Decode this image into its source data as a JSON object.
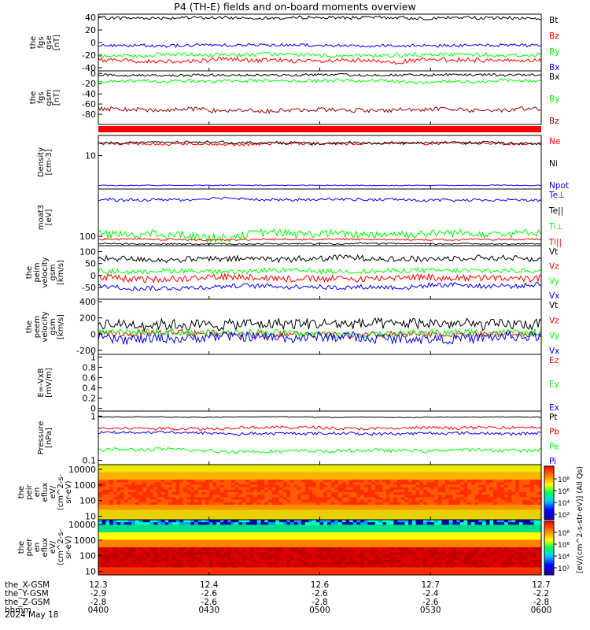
{
  "title": "P4 (TH-E) fields and on-board moments overview",
  "date_label": "2024 May 18",
  "colors": {
    "black": "#000000",
    "red": "#ff0000",
    "green": "#00ff00",
    "blue": "#0000ff",
    "darkred": "#990000"
  },
  "chart_data": [
    {
      "type": "line",
      "id": "fgs-gse",
      "ylabel": [
        "the",
        "fgs",
        "gse",
        "[nT]"
      ],
      "ylim": [
        -45,
        45
      ],
      "yticks": [
        40,
        20,
        0,
        -20,
        -40
      ],
      "series": [
        {
          "name": "Bt",
          "color": "#000000",
          "base": 39,
          "amp": 2,
          "step": 2.5
        },
        {
          "name": "Bz",
          "color": "#ff0000",
          "base": -28,
          "amp": 4,
          "step": 3.5
        },
        {
          "name": "By",
          "color": "#00ff00",
          "base": -20,
          "amp": 4,
          "step": 3
        },
        {
          "name": "Bx",
          "color": "#0000ff",
          "base": -5,
          "amp": 2,
          "step": 2.5
        }
      ]
    },
    {
      "type": "line",
      "id": "fgs-gsm",
      "ylabel": [
        "the",
        "fgs",
        "gsm",
        "[nT]"
      ],
      "ylim": [
        -100,
        5
      ],
      "yticks": [
        0,
        -20,
        -40,
        -60,
        -80
      ],
      "series": [
        {
          "name": "Bx",
          "color": "#000000",
          "base": -3,
          "amp": 2,
          "step": 2.5
        },
        {
          "name": "By",
          "color": "#00ff00",
          "base": -15,
          "amp": 4,
          "step": 3
        },
        {
          "name": "Bz",
          "color": "#990000",
          "base": -70,
          "amp": 6,
          "step": 4
        }
      ]
    },
    {
      "type": "line",
      "id": "density",
      "ylabel": [
        "Density",
        "[cm-3]"
      ],
      "log": true,
      "ylim": [
        2.7,
        22
      ],
      "yticks": [
        10
      ],
      "series": [
        {
          "name": "Ne",
          "color": "#ff0000",
          "base": 16,
          "amp": 1.2,
          "step": 0.8
        },
        {
          "name": "Ni",
          "color": "#000000",
          "base": 16.5,
          "amp": 1.2,
          "step": 0.8
        },
        {
          "name": "Npot",
          "color": "#0000ff",
          "base": 3.1,
          "amp": 0.05,
          "step": 0.05
        }
      ]
    },
    {
      "type": "line",
      "id": "temperature",
      "ylabel": [
        "moat3",
        "[eV]"
      ],
      "log": true,
      "ylim": [
        68,
        700
      ],
      "yticks": [
        100
      ],
      "series": [
        {
          "name": "Te⊥",
          "color": "#0000ff",
          "base": 450,
          "amp": 40,
          "step": 25
        },
        {
          "name": "Te||",
          "color": "#000000",
          "base": 74,
          "amp": 3,
          "step": 2
        },
        {
          "name": "Ti⊥",
          "color": "#00ff00",
          "base": 115,
          "amp": 20,
          "step": 18
        },
        {
          "name": "Ti||",
          "color": "#ff0000",
          "base": 88,
          "amp": 4,
          "step": 3
        }
      ]
    },
    {
      "type": "line",
      "id": "peim-velocity",
      "ylabel": [
        "the",
        "peim",
        "velocity",
        "gsm",
        "[km/s]"
      ],
      "ylim": [
        -100,
        125
      ],
      "yticks": [
        100,
        50,
        0,
        -50
      ],
      "series": [
        {
          "name": "Vt",
          "color": "#000000",
          "base": 70,
          "amp": 10,
          "step": 12
        },
        {
          "name": "Vz",
          "color": "#ff0000",
          "base": -10,
          "amp": 15,
          "step": 14
        },
        {
          "name": "Vy",
          "color": "#00ff00",
          "base": 20,
          "amp": 10,
          "step": 10
        },
        {
          "name": "Vx",
          "color": "#0000ff",
          "base": -45,
          "amp": 12,
          "step": 10
        }
      ]
    },
    {
      "type": "line",
      "id": "peem-velocity",
      "ylabel": [
        "the",
        "peem",
        "velocity",
        "gsm",
        "[km/s]"
      ],
      "ylim": [
        -250,
        430
      ],
      "yticks": [
        400,
        200,
        0,
        -200
      ],
      "series": [
        {
          "name": "Vt",
          "color": "#000000",
          "base": 120,
          "amp": 40,
          "step": 70
        },
        {
          "name": "Vz",
          "color": "#ff0000",
          "base": 0,
          "amp": 30,
          "step": 40
        },
        {
          "name": "Vy",
          "color": "#00ff00",
          "base": 20,
          "amp": 30,
          "step": 40
        },
        {
          "name": "Vx",
          "color": "#0000ff",
          "base": -40,
          "amp": 40,
          "step": 60
        }
      ]
    },
    {
      "type": "line",
      "id": "efield",
      "ylabel": [
        "E=-VxB",
        "[mV/m]"
      ],
      "ylim": [
        -0.05,
        1.05
      ],
      "yticks": [
        1.0,
        0.8,
        0.6,
        0.4,
        0.2,
        0.0
      ],
      "series": [
        {
          "name": "Ez",
          "color": "#ff0000",
          "empty": true
        },
        {
          "name": "Ey",
          "color": "#00ff00",
          "empty": true
        },
        {
          "name": "Ex",
          "color": "#0000ff",
          "empty": true
        }
      ]
    },
    {
      "type": "line",
      "id": "pressure",
      "ylabel": [
        "Pressure",
        "[nPa]"
      ],
      "log": true,
      "ylim": [
        0.08,
        1.3
      ],
      "yticks": [
        1.0,
        0.1
      ],
      "series": [
        {
          "name": "Pt",
          "color": "#000000",
          "base": 0.95,
          "amp": 0.03,
          "step": 0.02
        },
        {
          "name": "Pb",
          "color": "#ff0000",
          "base": 0.55,
          "amp": 0.05,
          "step": 0.04
        },
        {
          "name": "Pe",
          "color": "#00ff00",
          "base": 0.17,
          "amp": 0.02,
          "step": 0.015
        },
        {
          "name": "Pi",
          "color": "#0000ff",
          "base": 0.42,
          "amp": 0.04,
          "step": 0.03
        }
      ]
    },
    {
      "type": "heatmap",
      "id": "peir-flux",
      "ylabel": [
        "the",
        "peir",
        "en",
        "eflux",
        "eV/",
        "(cm^2-s-",
        "sr-eV)"
      ],
      "log": true,
      "ylim": [
        6,
        20000
      ],
      "yticks": [
        10000,
        1000,
        100,
        10
      ]
    },
    {
      "type": "heatmap",
      "id": "peer-flux",
      "ylabel": [
        "the",
        "peer",
        "en",
        "eflux",
        "eV/",
        "(cm^2-s-",
        "sr-eV)"
      ],
      "log": true,
      "ylim": [
        6,
        20000
      ],
      "yticks": [
        10000,
        1000,
        100,
        10
      ]
    }
  ],
  "colorbar": {
    "label": "[eV/(cm^2-s-str-eV)] (All Qs)",
    "ticks_top": [
      "10⁸",
      "10⁶",
      "10⁴",
      "10²"
    ],
    "ticks_bottom": [
      "10⁸",
      "10⁶",
      "10⁴",
      "10²"
    ]
  },
  "x_axis": {
    "row_labels": [
      "the_X-GSM",
      "the_Y-GSM",
      "the_Z-GSM",
      "hhmm"
    ],
    "ticks": [
      {
        "hhmm": "0400",
        "x": "12.3",
        "y": "-2.9",
        "z": "-2.8"
      },
      {
        "hhmm": "0430",
        "x": "12.4",
        "y": "-2.6",
        "z": "-2.6"
      },
      {
        "hhmm": "0500",
        "x": "12.6",
        "y": "-2.6",
        "z": "-2.8"
      },
      {
        "hhmm": "0530",
        "x": "12.7",
        "y": "-2.4",
        "z": "-2.6"
      },
      {
        "hhmm": "0600",
        "x": "12.7",
        "y": "-2.2",
        "z": "-2.8"
      }
    ]
  }
}
